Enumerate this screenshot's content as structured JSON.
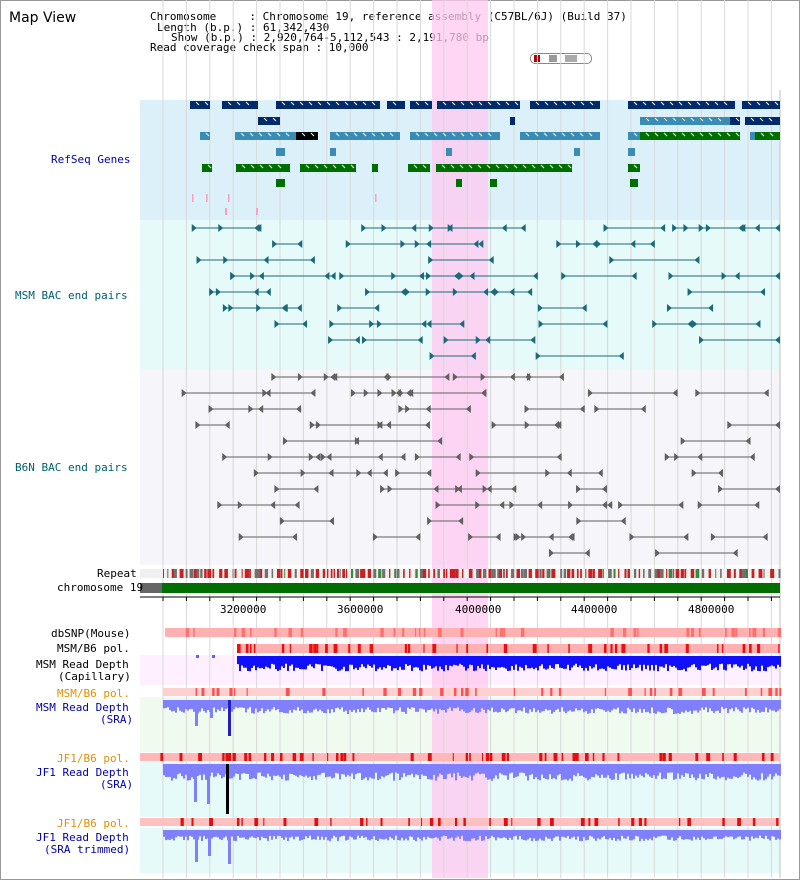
{
  "title": "Map View",
  "info": {
    "chromosome": "Chromosome     : Chromosome 19, reference assembly (C57BL/6J) (Build 37)",
    "length": "Length (b.p.) : 61,342,430",
    "show": "Show (b.p.) : 2,920,764-5,112,543 : 2,191,780 bp",
    "coverage": "Read coverage check span : 10,000"
  },
  "tracks": {
    "refseq": "RefSeq Genes",
    "msm_bac": "MSM BAC end pairs",
    "b6n_bac": "B6N BAC end pairs",
    "repeat": "Repeat",
    "chromosome": "chromosome 19",
    "dbsnp": "dbSNP(Mouse)",
    "msm_pol1": "MSM/B6 pol.",
    "msm_depth_cap_1": "MSM Read Depth",
    "msm_depth_cap_2": "(Capillary)",
    "msm_pol2": "MSM/B6 pol.",
    "msm_depth_sra_1": "MSM Read Depth",
    "msm_depth_sra_2": "(SRA)",
    "jf1_pol": "JF1/B6 pol.",
    "jf1_depth_1": "JF1 Read Depth",
    "jf1_depth_2": "(SRA)",
    "jf1_pol2": "JF1/B6 pol.",
    "jf1_trim_1": "JF1 Read Depth",
    "jf1_trim_2": "(SRA trimmed)"
  },
  "axis": {
    "ticks": [
      "3200000",
      "3600000",
      "4000000",
      "4400000",
      "4800000"
    ]
  },
  "colors": {
    "refseq_bg": "#dcf0fa",
    "msm_bg": "#e6fafa",
    "b6n_bg": "#f5f5fa",
    "highlight": "#ffc8f0",
    "gene_dark": "#002a6a",
    "gene_mid": "#3b8cb4",
    "gene_green": "#006e00",
    "label_blue": "#0000a8",
    "label_teal": "#006070",
    "label_orange": "#e09000",
    "depth_blue": "#0000ff",
    "depth_light": "#8080ff"
  }
}
